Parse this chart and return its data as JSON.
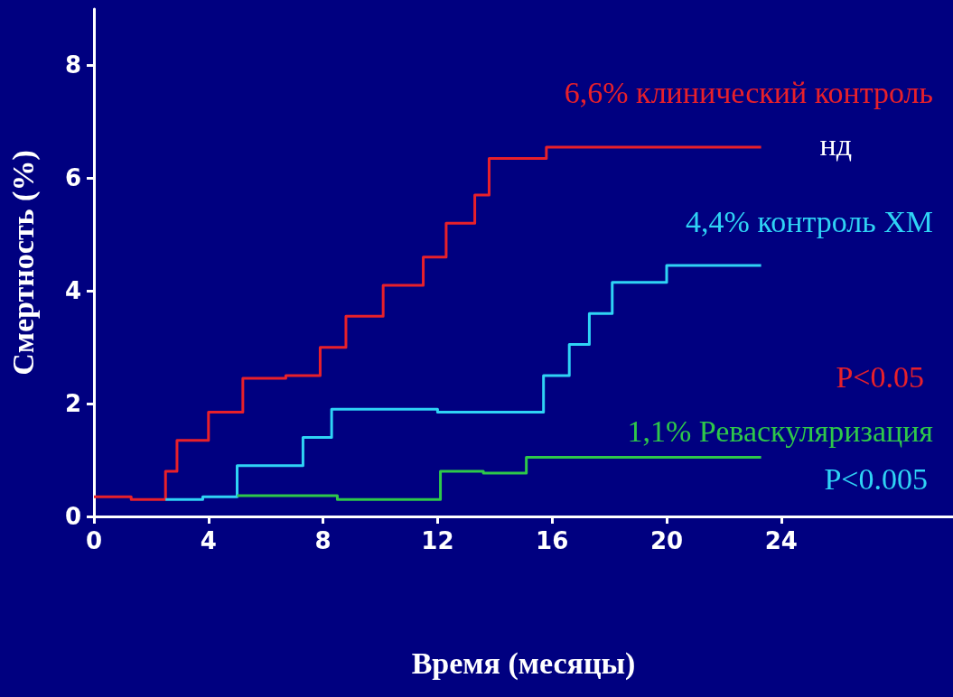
{
  "chart_data": {
    "type": "step",
    "xlabel": "Время (месяцы)",
    "ylabel": "Смертность (%)",
    "xlim": [
      0,
      30
    ],
    "xticks": [
      0,
      4,
      8,
      12,
      16,
      20,
      24
    ],
    "ylim": [
      0,
      9
    ],
    "yticks": [
      0,
      2,
      4,
      6,
      8
    ],
    "grid": false,
    "legend": false,
    "series": [
      {
        "name": "6,6% клинический контроль",
        "color": "#e8202a",
        "x": [
          0,
          1.3,
          2.5,
          2.9,
          4.0,
          5.2,
          6.7,
          7.9,
          8.8,
          10.1,
          11.5,
          12.3,
          13.3,
          13.8,
          15.8,
          23.3
        ],
        "values": [
          0.35,
          0.3,
          0.8,
          1.35,
          1.85,
          2.45,
          2.5,
          3.0,
          3.55,
          4.1,
          4.6,
          5.2,
          5.7,
          6.35,
          6.55,
          6.55
        ]
      },
      {
        "name": "4,4% контроль ХМ",
        "color": "#2fd3f5",
        "x": [
          2.5,
          3.8,
          5.0,
          7.3,
          8.3,
          12.0,
          15.7,
          16.6,
          17.3,
          18.1,
          20.0,
          23.3
        ],
        "values": [
          0.3,
          0.35,
          0.9,
          1.4,
          1.9,
          1.85,
          2.5,
          3.05,
          3.6,
          4.15,
          4.45,
          4.45
        ]
      },
      {
        "name": "1,1% Реваскуляризация",
        "color": "#2ec84a",
        "x": [
          5.0,
          8.5,
          12.1,
          13.6,
          15.1,
          23.3
        ],
        "values": [
          0.37,
          0.3,
          0.8,
          0.77,
          1.05,
          1.05
        ]
      }
    ],
    "annotations": [
      "нд",
      "P<0.05",
      "P<0.005"
    ]
  }
}
